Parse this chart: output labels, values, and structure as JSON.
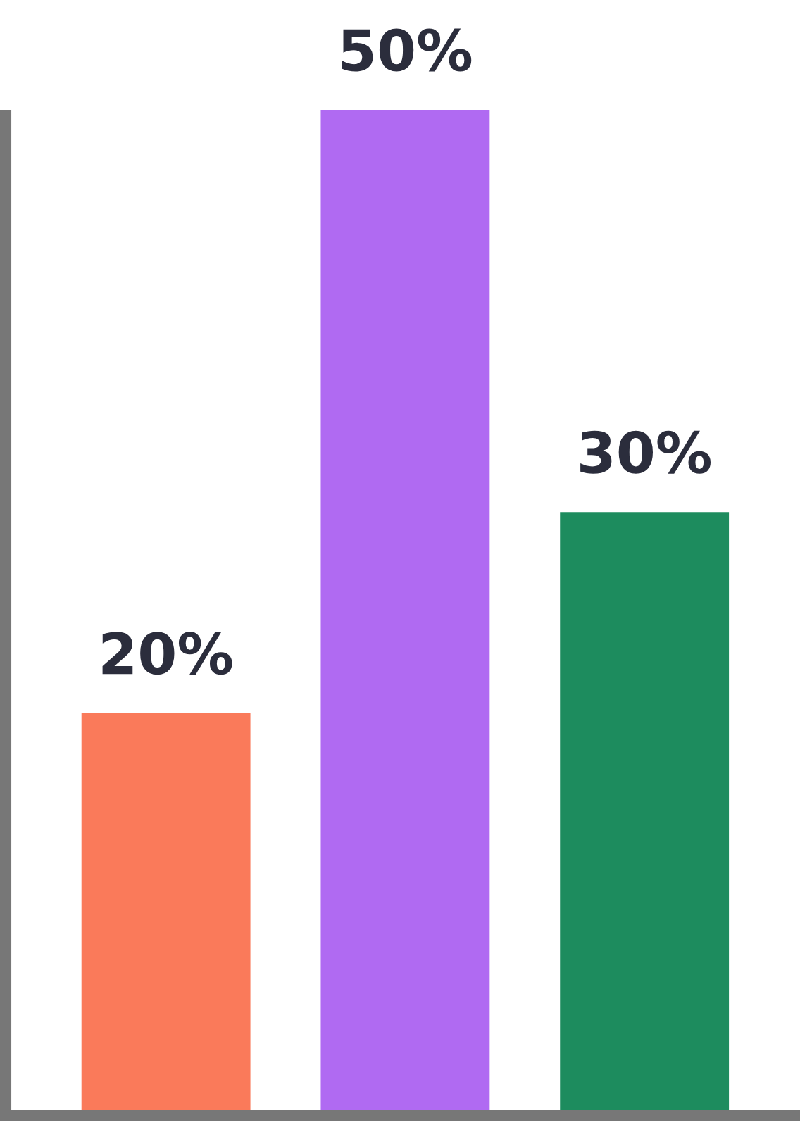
{
  "chart_data": {
    "type": "bar",
    "categories": [
      null,
      null,
      null
    ],
    "values": [
      20,
      50,
      30
    ],
    "colors": [
      "#fa7a5a",
      "#b06af2",
      "#1d8c5e"
    ],
    "value_labels": [
      "20%",
      "50%",
      "30%"
    ],
    "grid": false
  }
}
